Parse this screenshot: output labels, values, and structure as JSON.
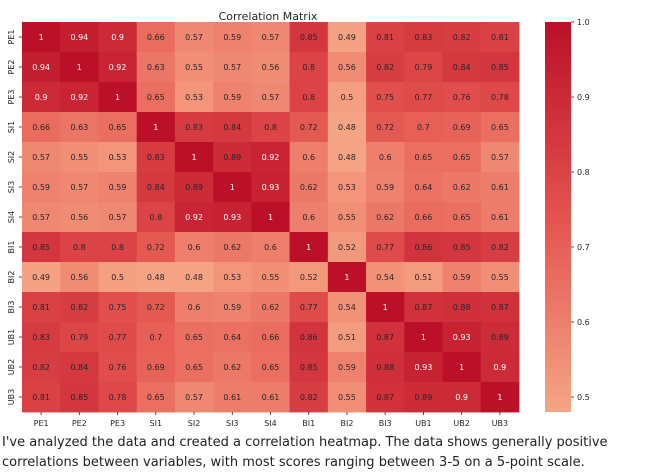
{
  "chart_data": {
    "type": "heatmap",
    "title": "Correlation Matrix",
    "xlabel": "",
    "ylabel": "",
    "labels": [
      "PE1",
      "PE2",
      "PE3",
      "SI1",
      "SI2",
      "SI3",
      "SI4",
      "BI1",
      "BI2",
      "BI3",
      "UB1",
      "UB2",
      "UB3"
    ],
    "matrix": [
      [
        1,
        0.94,
        0.9,
        0.66,
        0.57,
        0.59,
        0.57,
        0.85,
        0.49,
        0.81,
        0.83,
        0.82,
        0.81
      ],
      [
        0.94,
        1,
        0.92,
        0.63,
        0.55,
        0.57,
        0.56,
        0.8,
        0.56,
        0.82,
        0.79,
        0.84,
        0.85
      ],
      [
        0.9,
        0.92,
        1,
        0.65,
        0.53,
        0.59,
        0.57,
        0.8,
        0.5,
        0.75,
        0.77,
        0.76,
        0.78
      ],
      [
        0.66,
        0.63,
        0.65,
        1,
        0.83,
        0.84,
        0.8,
        0.72,
        0.48,
        0.72,
        0.7,
        0.69,
        0.65
      ],
      [
        0.57,
        0.55,
        0.53,
        0.83,
        1,
        0.89,
        0.92,
        0.6,
        0.48,
        0.6,
        0.65,
        0.65,
        0.57
      ],
      [
        0.59,
        0.57,
        0.59,
        0.84,
        0.89,
        1,
        0.93,
        0.62,
        0.53,
        0.59,
        0.64,
        0.62,
        0.61
      ],
      [
        0.57,
        0.56,
        0.57,
        0.8,
        0.92,
        0.93,
        1,
        0.6,
        0.55,
        0.62,
        0.66,
        0.65,
        0.61
      ],
      [
        0.85,
        0.8,
        0.8,
        0.72,
        0.6,
        0.62,
        0.6,
        1,
        0.52,
        0.77,
        0.86,
        0.85,
        0.82
      ],
      [
        0.49,
        0.56,
        0.5,
        0.48,
        0.48,
        0.53,
        0.55,
        0.52,
        1,
        0.54,
        0.51,
        0.59,
        0.55
      ],
      [
        0.81,
        0.82,
        0.75,
        0.72,
        0.6,
        0.59,
        0.62,
        0.77,
        0.54,
        1,
        0.87,
        0.88,
        0.87
      ],
      [
        0.83,
        0.79,
        0.77,
        0.7,
        0.65,
        0.64,
        0.66,
        0.86,
        0.51,
        0.87,
        1,
        0.93,
        0.89
      ],
      [
        0.82,
        0.84,
        0.76,
        0.69,
        0.65,
        0.62,
        0.65,
        0.85,
        0.59,
        0.88,
        0.93,
        1,
        0.9
      ],
      [
        0.81,
        0.85,
        0.78,
        0.65,
        0.57,
        0.61,
        0.61,
        0.82,
        0.55,
        0.87,
        0.89,
        0.9,
        1
      ]
    ],
    "colorbar": {
      "range": [
        0.48,
        1.0
      ],
      "ticks": [
        0.5,
        0.6,
        0.7,
        0.8,
        0.9,
        1.0
      ],
      "tick_labels": [
        "0.5",
        "0.6",
        "0.7",
        "0.8",
        "0.9",
        "1.0"
      ],
      "low_color": "#f5a585",
      "high_color": "#bb1028"
    },
    "text_dark": "#262626",
    "text_light": "#ffffff",
    "grid": false,
    "legend": "right colorbar"
  },
  "message": "I've analyzed the data and created a correlation heatmap. The data shows generally positive correlations between variables, with most scores ranging between 3-5 on a 5-point scale."
}
